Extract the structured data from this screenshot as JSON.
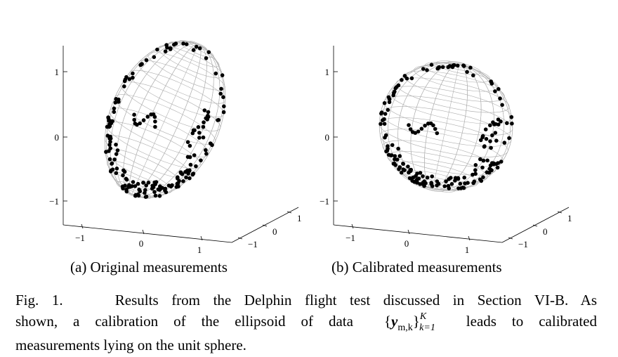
{
  "panels": [
    {
      "id": "a",
      "subcaption": "(a) Original measurements",
      "z_ticks": [
        "1",
        "0",
        "−1"
      ],
      "x_ticks": [
        "−1",
        "0",
        "1"
      ],
      "y_ticks": [
        "1",
        "0",
        "−1"
      ],
      "shape": "tilted ellipsoid"
    },
    {
      "id": "b",
      "subcaption": "(b) Calibrated measurements",
      "z_ticks": [
        "1",
        "0",
        "−1"
      ],
      "x_ticks": [
        "−1",
        "0",
        "1"
      ],
      "y_ticks": [
        "1",
        "0",
        "−1"
      ],
      "shape": "unit sphere"
    }
  ],
  "caption": {
    "label": "Fig. 1.",
    "line1": "Results from the Delphin flight test discussed in Section VI-B. As",
    "line2_pre": "shown, a calibration of the ellipsoid of data",
    "line2_post": "leads to calibrated",
    "line3": "measurements lying on the unit sphere.",
    "math": {
      "open": "{",
      "var": "y",
      "sub": "m,k",
      "close": "}",
      "sup": "K",
      "lower": "k=1"
    }
  },
  "colors": {
    "grid": "#b0b0b0",
    "points": "#000000",
    "axes": "#000000"
  }
}
